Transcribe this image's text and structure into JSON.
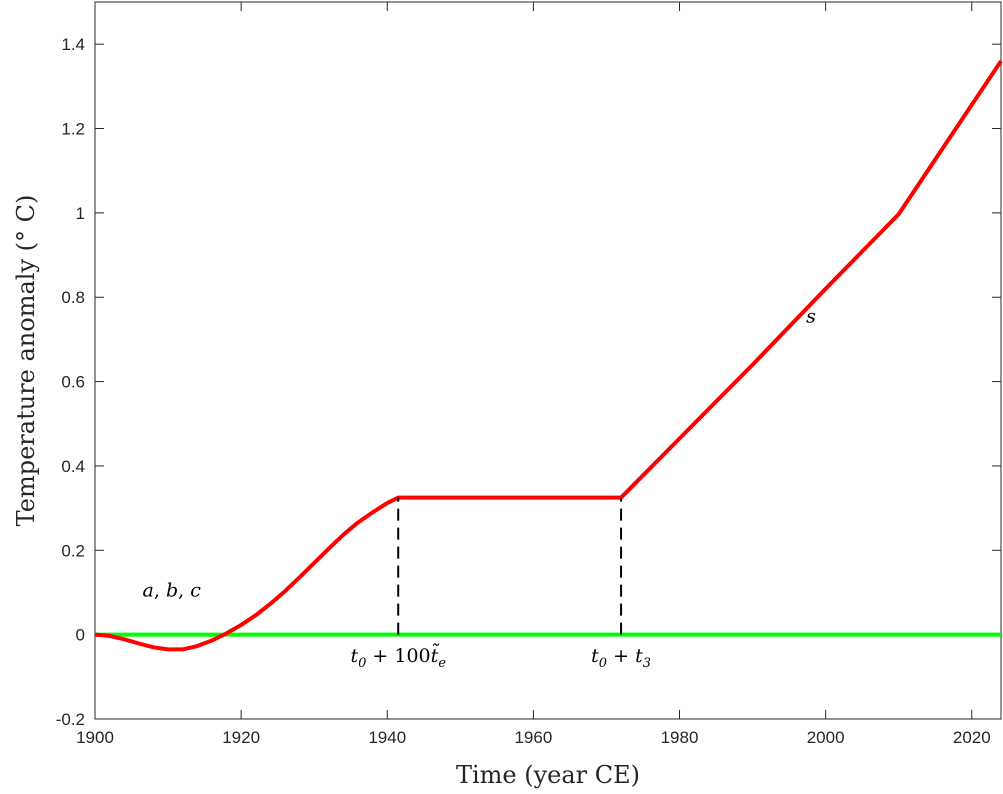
{
  "chart_data": {
    "type": "line",
    "title": "",
    "xlabel": "Time (year CE)",
    "ylabel": "Temperature anomaly (° C)",
    "xlim": [
      1900,
      2024
    ],
    "ylim": [
      -0.2,
      1.5
    ],
    "xticks": [
      1900,
      1920,
      1940,
      1960,
      1980,
      2000,
      2020
    ],
    "yticks": [
      -0.2,
      0,
      0.2,
      0.4,
      0.6,
      0.8,
      1,
      1.2,
      1.4
    ],
    "ytick_labels": [
      "-0.2",
      "0",
      "0.2",
      "0.4",
      "0.6",
      "0.8",
      "1",
      "1.2",
      "1.4"
    ],
    "grid": false,
    "box": true,
    "series": [
      {
        "color": "#ff0000",
        "x": [
          1900,
          1902,
          1904,
          1906,
          1908,
          1910,
          1912,
          1914,
          1916,
          1918,
          1920,
          1922,
          1924,
          1926,
          1928,
          1930,
          1932,
          1934,
          1936,
          1938,
          1940,
          1941.5,
          1950,
          1960,
          1972,
          1980,
          1990,
          2000,
          2010,
          2024
        ],
        "y": [
          0,
          -0.003,
          -0.011,
          -0.021,
          -0.03,
          -0.035,
          -0.035,
          -0.027,
          -0.014,
          0.003,
          0.023,
          0.046,
          0.073,
          0.103,
          0.136,
          0.17,
          0.204,
          0.237,
          0.266,
          0.29,
          0.312,
          0.325,
          0.325,
          0.325,
          0.325,
          0.465,
          0.64,
          0.82,
          0.997,
          1.36
        ]
      },
      {
        "color": "#00ff00",
        "x": [
          1900,
          2024
        ],
        "y": [
          0,
          0
        ]
      }
    ],
    "vlines": [
      {
        "x": 1941.5,
        "y0": 0,
        "y1": 0.325,
        "style": "dashed",
        "color": "#000000"
      },
      {
        "x": 1972,
        "y0": 0,
        "y1": 0.325,
        "style": "dashed",
        "color": "#000000"
      }
    ],
    "annotations": {
      "abc": {
        "x": 1910.5,
        "y": 0.09
      },
      "s": {
        "x": 1998,
        "y": 0.74
      },
      "te": {
        "x": 1941.5,
        "y": -0.065
      },
      "t3": {
        "x": 1972,
        "y": -0.065
      }
    }
  }
}
